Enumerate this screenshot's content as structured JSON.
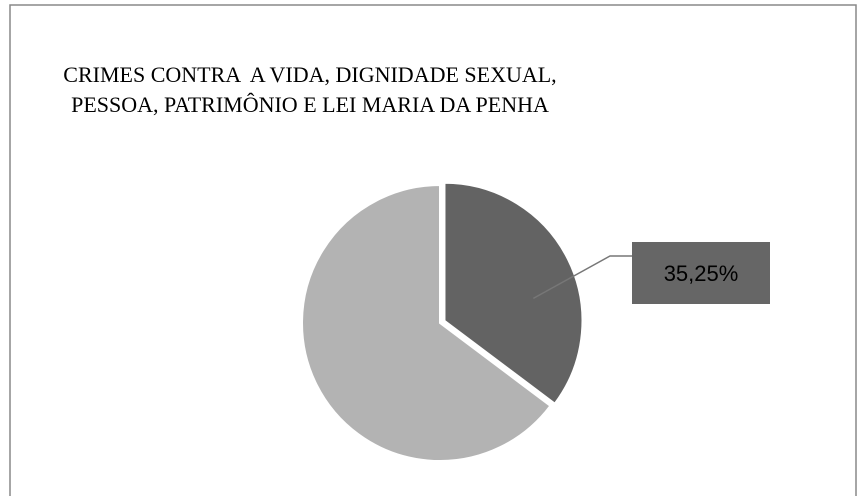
{
  "chart_data": {
    "type": "pie",
    "title": [
      "CRIMES CONTRA  A VIDA, DIGNIDADE SEXUAL,",
      "PESSOA, PATRIMÔNIO E LEI MARIA DA PENHA"
    ],
    "values": [
      35.25,
      64.75
    ],
    "value_labels": [
      "35,25%",
      null
    ],
    "colors": [
      "#636363",
      "#b3b3b3"
    ]
  }
}
